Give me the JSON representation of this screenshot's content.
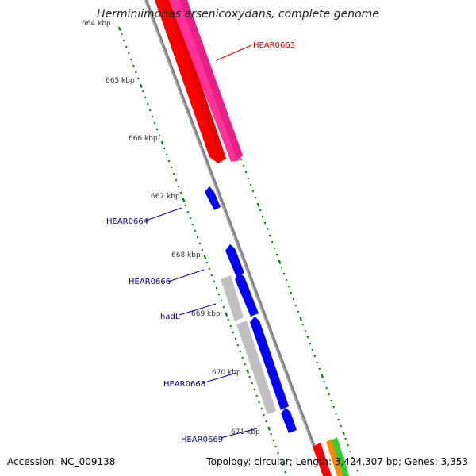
{
  "map": {
    "title": "Herminiimonas arsenicoxydans, complete genome",
    "accession": "Accession: NC_009138",
    "topology": "Topology: circular;",
    "length": "Length: 3,424,307 bp;",
    "genes": "Genes: 3,353"
  },
  "colors": {
    "backbone": "#808080",
    "ruler_tick": "#008000",
    "gene_forward_red": "#ff0000",
    "gene_forward_pink": "#ff3399",
    "gene_reverse_blue": "#0000ff",
    "gene_other_gray": "#c0c0c0",
    "label_blue": "#00008b",
    "label_red": "#cc0000",
    "tick_label": "#333333",
    "strip_orange": "#ff8c00",
    "strip_green": "#33cc33"
  },
  "scale": {
    "kbp_ticks": [
      "664 kbp",
      "665 kbp",
      "666 kbp",
      "667 kbp",
      "668 kbp",
      "669 kbp",
      "670 kbp",
      "671 kbp"
    ]
  },
  "genes": [
    {
      "id": "HEAR0663",
      "label": "HEAR0663",
      "color": "#cc0000",
      "track": "forward"
    },
    {
      "id": "HEAR0664",
      "label": "HEAR0664",
      "color": "#00008b",
      "track": "reverse"
    },
    {
      "id": "HEAR0666",
      "label": "HEAR0666",
      "color": "#00008b",
      "track": "reverse"
    },
    {
      "id": "hadL",
      "label": "hadL",
      "color": "#00008b",
      "track": "other"
    },
    {
      "id": "HEAR0668",
      "label": "HEAR0668",
      "color": "#00008b",
      "track": "reverse"
    },
    {
      "id": "HEAR0669",
      "label": "HEAR0669",
      "color": "#00008b",
      "track": "reverse"
    }
  ]
}
